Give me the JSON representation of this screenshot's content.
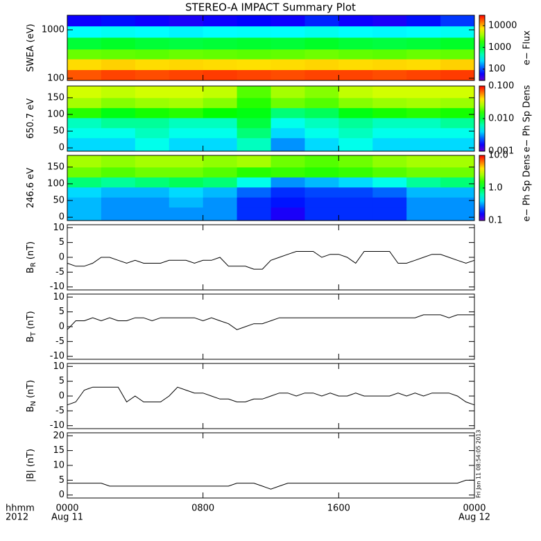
{
  "title": "STEREO-A IMPACT Summary Plot",
  "timestamp": "Fri Jan 11 08:54:05 2013",
  "x_label": [
    "hhmm",
    "2012"
  ],
  "xlim": [
    0,
    24
  ],
  "xticks": [
    {
      "value": 0,
      "label": "0000"
    },
    {
      "value": 8,
      "label": "0800"
    },
    {
      "value": 16,
      "label": "1600"
    },
    {
      "value": 24,
      "label": "0000"
    }
  ],
  "xtick_dates": [
    "Aug 11",
    null,
    null,
    "Aug 12"
  ],
  "x_hours": [
    0,
    0.5,
    1,
    1.5,
    2,
    2.5,
    3,
    3.5,
    4,
    4.5,
    5,
    5.5,
    6,
    6.5,
    7,
    7.5,
    8,
    8.5,
    9,
    9.5,
    10,
    10.5,
    11,
    11.5,
    12,
    12.5,
    13,
    13.5,
    14,
    14.5,
    15,
    15.5,
    16,
    16.5,
    17,
    17.5,
    18,
    18.5,
    19,
    19.5,
    20,
    20.5,
    21,
    21.5,
    22,
    22.5,
    23,
    23.5,
    24
  ],
  "chart_data": [
    {
      "type": "heatmap",
      "ylabel": "SWEA (eV)",
      "ylog": true,
      "ylim": [
        90,
        2000
      ],
      "yticks": [
        100,
        1000
      ],
      "colormap": "rainbow",
      "zlog": true,
      "zlim": [
        30,
        30000
      ],
      "zticks": [
        100,
        1000,
        10000
      ],
      "zlabel": "e− Flux",
      "x": [
        0,
        2,
        4,
        6,
        8,
        10,
        12,
        14,
        16,
        18,
        20,
        22,
        24
      ],
      "y": [
        90,
        150,
        250,
        400,
        700,
        1200,
        2000
      ],
      "z": [
        [
          18000,
          20000,
          19000,
          20000,
          21000,
          20000,
          19000,
          20000,
          20000,
          19000,
          20000,
          21000
        ],
        [
          8000,
          8500,
          8000,
          8200,
          8000,
          7800,
          8000,
          8300,
          8000,
          8200,
          8000,
          8500
        ],
        [
          2600,
          2500,
          2400,
          2600,
          2500,
          2400,
          2500,
          2700,
          2500,
          2400,
          2600,
          2500
        ],
        [
          1000,
          1100,
          1000,
          950,
          1000,
          1050,
          1000,
          1100,
          1000,
          950,
          1000,
          1100
        ],
        [
          300,
          320,
          300,
          280,
          300,
          310,
          300,
          330,
          300,
          290,
          300,
          320
        ],
        [
          60,
          70,
          60,
          55,
          60,
          65,
          60,
          80,
          60,
          55,
          70,
          90
        ]
      ]
    },
    {
      "type": "heatmap",
      "ylabel": "650.7 eV",
      "ylog": false,
      "ylim": [
        -10,
        185
      ],
      "yticks": [
        0,
        50,
        100,
        150
      ],
      "colormap": "rainbow",
      "zlog": true,
      "zlim": [
        0.001,
        0.1
      ],
      "zticks": [
        {
          "value": 0.001,
          "label": "0.001"
        },
        {
          "value": 0.01,
          "label": "0.010"
        },
        {
          "value": 0.1,
          "label": "0.100"
        }
      ],
      "zlabel": "e− Ph Sp Dens",
      "x": [
        0,
        2,
        4,
        6,
        8,
        10,
        12,
        14,
        16,
        18,
        20,
        22,
        24
      ],
      "y": [
        -10,
        30,
        60,
        90,
        120,
        150,
        185
      ],
      "z": [
        [
          0.004,
          0.004,
          0.005,
          0.004,
          0.004,
          0.006,
          0.003,
          0.004,
          0.005,
          0.004,
          0.004,
          0.004
        ],
        [
          0.005,
          0.005,
          0.006,
          0.005,
          0.005,
          0.008,
          0.004,
          0.005,
          0.006,
          0.005,
          0.005,
          0.005
        ],
        [
          0.006,
          0.007,
          0.007,
          0.006,
          0.006,
          0.01,
          0.005,
          0.006,
          0.007,
          0.006,
          0.006,
          0.007
        ],
        [
          0.015,
          0.012,
          0.014,
          0.015,
          0.013,
          0.012,
          0.008,
          0.009,
          0.012,
          0.014,
          0.015,
          0.014
        ],
        [
          0.025,
          0.022,
          0.024,
          0.025,
          0.022,
          0.015,
          0.02,
          0.018,
          0.022,
          0.024,
          0.025,
          0.024
        ],
        [
          0.03,
          0.028,
          0.03,
          0.03,
          0.028,
          0.018,
          0.025,
          0.022,
          0.028,
          0.03,
          0.03,
          0.03
        ]
      ]
    },
    {
      "type": "heatmap",
      "ylabel": "246.6 eV",
      "ylog": false,
      "ylim": [
        -10,
        185
      ],
      "yticks": [
        0,
        50,
        100,
        150
      ],
      "colormap": "rainbow",
      "zlog": true,
      "zlim": [
        0.1,
        10
      ],
      "zticks": [
        0.1,
        {
          "value": 1,
          "label": "1.0"
        },
        {
          "value": 10,
          "label": "10.0"
        }
      ],
      "zlabel": "e− Ph Sp Dens",
      "x": [
        0,
        2,
        4,
        6,
        8,
        10,
        12,
        14,
        16,
        18,
        20,
        22,
        24
      ],
      "y": [
        -10,
        30,
        60,
        90,
        120,
        150,
        185
      ],
      "z": [
        [
          0.35,
          0.3,
          0.3,
          0.3,
          0.3,
          0.2,
          0.15,
          0.2,
          0.2,
          0.2,
          0.3,
          0.3
        ],
        [
          0.35,
          0.3,
          0.3,
          0.35,
          0.3,
          0.2,
          0.18,
          0.2,
          0.2,
          0.2,
          0.3,
          0.3
        ],
        [
          0.4,
          0.35,
          0.35,
          0.4,
          0.35,
          0.25,
          0.2,
          0.22,
          0.22,
          0.25,
          0.35,
          0.35
        ],
        [
          0.8,
          0.7,
          0.8,
          0.9,
          0.8,
          0.5,
          0.3,
          0.35,
          0.4,
          0.5,
          0.7,
          0.8
        ],
        [
          2,
          1.8,
          2,
          2,
          1.8,
          1.5,
          1.6,
          1.5,
          1.6,
          1.8,
          2,
          2
        ],
        [
          2.5,
          2.3,
          2.5,
          2.5,
          2.3,
          2.5,
          2,
          1.8,
          2,
          2.3,
          2.5,
          2.5
        ]
      ]
    },
    {
      "type": "line",
      "ylabel": "B",
      "ylabel_sub": "R",
      "ylabel_suffix": "(nT)",
      "ylim": [
        -11,
        11
      ],
      "yticks": [
        -10,
        -5,
        0,
        5,
        10
      ],
      "color": "#000000",
      "values": [
        -2,
        -3,
        -3,
        -2,
        0,
        0,
        -1,
        -2,
        -1,
        -2,
        -2,
        -2,
        -1,
        -1,
        -1,
        -2,
        -1,
        -1,
        0,
        -3,
        -3,
        -3,
        -4,
        -4,
        -1,
        0,
        1,
        2,
        2,
        2,
        0,
        1,
        1,
        0,
        -2,
        2,
        2,
        2,
        2,
        -2,
        -2,
        -1,
        0,
        1,
        1,
        0,
        -1,
        -2,
        -1
      ]
    },
    {
      "type": "line",
      "ylabel": "B",
      "ylabel_sub": "T",
      "ylabel_suffix": "(nT)",
      "ylim": [
        -11,
        11
      ],
      "yticks": [
        -10,
        -5,
        0,
        5,
        10
      ],
      "color": "#000000",
      "values": [
        -1,
        2,
        2,
        3,
        2,
        3,
        2,
        2,
        3,
        3,
        2,
        3,
        3,
        3,
        3,
        3,
        2,
        3,
        2,
        1,
        -1,
        0,
        1,
        1,
        2,
        3,
        3,
        3,
        3,
        3,
        3,
        3,
        3,
        3,
        3,
        3,
        3,
        3,
        3,
        3,
        3,
        3,
        4,
        4,
        4,
        3,
        4,
        4,
        4
      ]
    },
    {
      "type": "line",
      "ylabel": "B",
      "ylabel_sub": "N",
      "ylabel_suffix": "(nT)",
      "ylim": [
        -11,
        11
      ],
      "yticks": [
        -10,
        -5,
        0,
        5,
        10
      ],
      "color": "#000000",
      "values": [
        -3,
        -2,
        2,
        3,
        3,
        3,
        3,
        -2,
        0,
        -2,
        -2,
        -2,
        0,
        3,
        2,
        1,
        1,
        0,
        -1,
        -1,
        -2,
        -2,
        -1,
        -1,
        0,
        1,
        1,
        0,
        1,
        1,
        0,
        1,
        0,
        0,
        1,
        0,
        0,
        0,
        0,
        1,
        0,
        1,
        0,
        1,
        1,
        1,
        0,
        -2,
        -3
      ]
    },
    {
      "type": "line",
      "ylabel": "|B| (nT)",
      "ylim": [
        -1,
        21
      ],
      "yticks": [
        0,
        5,
        10,
        15,
        20
      ],
      "color": "#000000",
      "values": [
        4,
        4,
        4,
        4,
        4,
        3,
        3,
        3,
        3,
        3,
        3,
        3,
        3,
        3,
        3,
        3,
        3,
        3,
        3,
        3,
        4,
        4,
        4,
        3,
        2,
        3,
        4,
        4,
        4,
        4,
        4,
        4,
        4,
        4,
        4,
        4,
        4,
        4,
        4,
        4,
        4,
        4,
        4,
        4,
        4,
        4,
        4,
        5,
        5
      ]
    }
  ]
}
